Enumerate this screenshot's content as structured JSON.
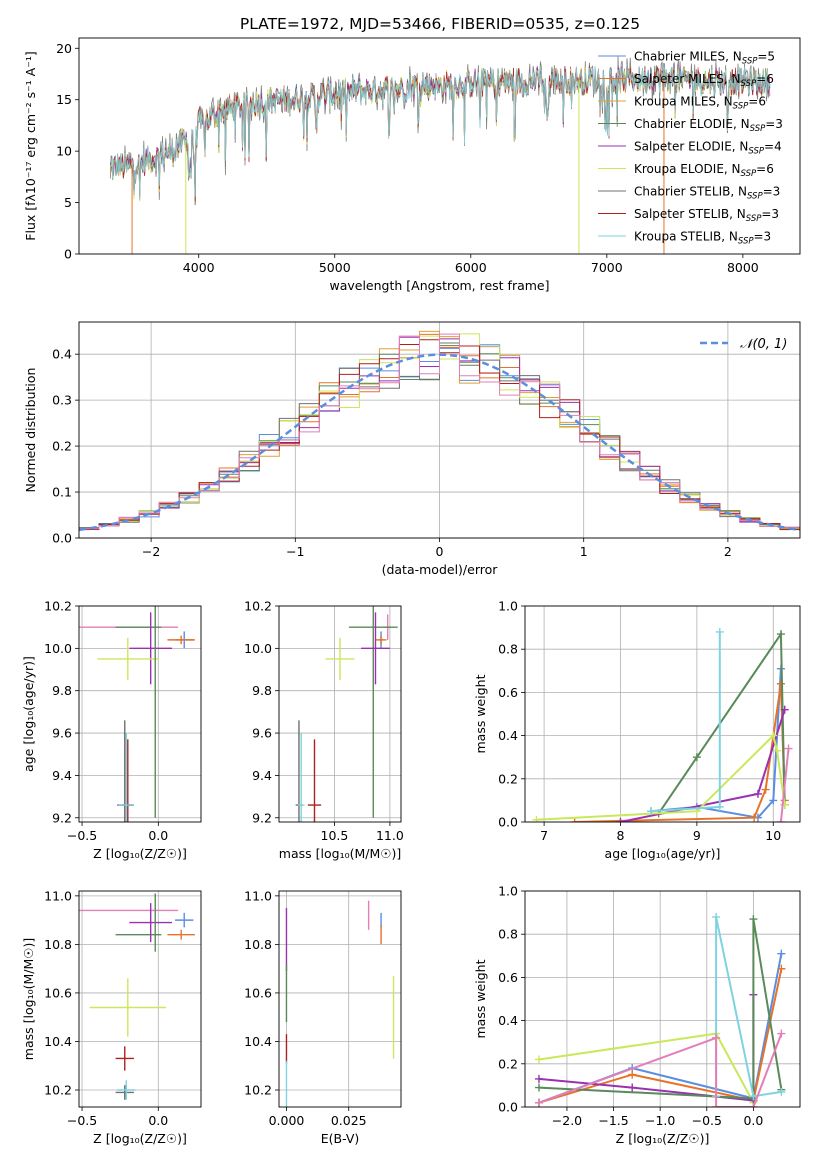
{
  "figure": {
    "title": "PLATE=1972, MJD=53466, FIBERID=0535, z=0.125"
  },
  "colors": {
    "Chabrier MILES": "#5b8ee0",
    "Salpeter MILES": "#e5732a",
    "Kroupa MILES": "#e0a030",
    "Chabrier ELODIE": "#5a8a5a",
    "Salpeter ELODIE": "#9b30b0",
    "Kroupa ELODIE": "#c9e85a",
    "Chabrier STELIB": "#707070",
    "Salpeter STELIB": "#b02020",
    "Kroupa STELIB": "#7fd3e0",
    "pink": "#e37fb8",
    "gauss": "#5b8ee0"
  },
  "chart_data": [
    {
      "id": "spectrum",
      "type": "line",
      "xlabel": "wavelength [Angstrom, rest frame]",
      "ylabel": "Flux [fλ10⁻¹⁷ erg cm⁻² s⁻¹ A⁻¹]",
      "xlim": [
        3120,
        8420
      ],
      "ylim": [
        0,
        21
      ],
      "xticks": [
        4000,
        5000,
        6000,
        7000,
        8000
      ],
      "yticks": [
        0,
        5,
        10,
        15,
        20
      ],
      "legend_position": "top-right",
      "series": [
        {
          "name": "Chabrier MILES, N_SSP=5",
          "key": "Chabrier MILES"
        },
        {
          "name": "Salpeter MILES, N_SSP=6",
          "key": "Salpeter MILES"
        },
        {
          "name": "Kroupa MILES, N_SSP=6",
          "key": "Kroupa MILES"
        },
        {
          "name": "Chabrier ELODIE, N_SSP=3",
          "key": "Chabrier ELODIE"
        },
        {
          "name": "Salpeter ELODIE, N_SSP=4",
          "key": "Salpeter ELODIE"
        },
        {
          "name": "Kroupa ELODIE, N_SSP=6",
          "key": "Kroupa ELODIE"
        },
        {
          "name": "Chabrier STELIB, N_SSP=3",
          "key": "Chabrier STELIB"
        },
        {
          "name": "Salpeter STELIB, N_SSP=3",
          "key": "Salpeter STELIB"
        },
        {
          "name": "Kroupa STELIB, N_SSP=3",
          "key": "Kroupa STELIB"
        }
      ],
      "envelope": {
        "x": [
          3350,
          3400,
          3500,
          3600,
          3700,
          3800,
          3900,
          4000,
          4200,
          4400,
          4600,
          4800,
          5000,
          5200,
          5500,
          5800,
          6000,
          6200,
          6500,
          6800,
          7000,
          7200,
          7400,
          7600,
          7800,
          8000,
          8200
        ],
        "y": [
          8.2,
          8.6,
          8.4,
          9.0,
          9.5,
          10.0,
          11.0,
          12.8,
          14.0,
          14.6,
          15.0,
          15.3,
          15.6,
          15.8,
          16.2,
          16.4,
          16.6,
          16.7,
          16.8,
          16.9,
          17.0,
          17.0,
          17.1,
          16.9,
          16.8,
          16.7,
          16.6
        ]
      }
    },
    {
      "id": "residuals",
      "type": "line",
      "xlabel": "(data-model)/error",
      "ylabel": "Normed distribution",
      "xlim": [
        -2.5,
        2.5
      ],
      "ylim": [
        0,
        0.47
      ],
      "xticks": [
        -2,
        -1,
        0,
        1,
        2
      ],
      "yticks": [
        0.0,
        0.1,
        0.2,
        0.3,
        0.4
      ],
      "gauss_label": "𝒩(0, 1)",
      "legend_position": "top-right",
      "hist_keys": [
        "Chabrier MILES",
        "Salpeter MILES",
        "Kroupa MILES",
        "Chabrier ELODIE",
        "Salpeter ELODIE",
        "Kroupa ELODIE",
        "Chabrier STELIB",
        "Salpeter STELIB",
        "pink"
      ]
    },
    {
      "id": "age_vs_Z",
      "type": "scatter",
      "xlabel": "Z [log₁₀(Z/Z☉)]",
      "ylabel": "age  [log₁₀(age/yr)]",
      "xlim": [
        -0.52,
        0.28
      ],
      "ylim": [
        9.18,
        10.2
      ],
      "xticks": [
        -0.5,
        0.0
      ],
      "yticks": [
        9.2,
        9.4,
        9.6,
        9.8,
        10.0,
        10.2
      ],
      "points": [
        {
          "key": "pink",
          "x": -0.2,
          "y": 10.1,
          "xerr": 0.33,
          "yerr": 0.0
        },
        {
          "key": "Chabrier ELODIE",
          "x": -0.13,
          "y": 10.1,
          "xerr": 0.15,
          "yerr": 0.0
        },
        {
          "key": "Chabrier MILES",
          "x": 0.17,
          "y": 10.04,
          "xerr": 0.06,
          "yerr": 0.04
        },
        {
          "key": "Salpeter MILES",
          "x": 0.15,
          "y": 10.04,
          "xerr": 0.09,
          "yerr": 0.02
        },
        {
          "key": "Salpeter ELODIE",
          "x": -0.05,
          "y": 10.0,
          "xerr": 0.14,
          "yerr": 0.17
        },
        {
          "key": "Kroupa ELODIE",
          "x": -0.2,
          "y": 9.95,
          "xerr": 0.2,
          "yerr": 0.1
        },
        {
          "key": "Chabrier ELODIE",
          "x": -0.02,
          "y": 10.1,
          "xerr": 0.0,
          "yerr": 0.9
        },
        {
          "key": "Chabrier STELIB",
          "x": -0.22,
          "y": 9.26,
          "xerr": 0.05,
          "yerr": 0.4
        },
        {
          "key": "Salpeter STELIB",
          "x": -0.2,
          "y": 9.26,
          "xerr": 0.04,
          "yerr": 0.31
        },
        {
          "key": "Kroupa STELIB",
          "x": -0.21,
          "y": 9.26,
          "xerr": 0.05,
          "yerr": 0.34
        }
      ]
    },
    {
      "id": "age_vs_mass",
      "type": "scatter",
      "xlabel": "mass [log₁₀(M/M☉)]",
      "ylabel": "",
      "xlim": [
        10.0,
        11.1
      ],
      "ylim": [
        9.18,
        10.2
      ],
      "xticks": [
        10.5,
        11.0
      ],
      "yticks": [
        9.2,
        9.4,
        9.6,
        9.8,
        10.0,
        10.2
      ],
      "points": [
        {
          "key": "pink",
          "x": 10.98,
          "y": 10.1,
          "xerr": 0.03,
          "yerr": 0.06
        },
        {
          "key": "Chabrier ELODIE",
          "x": 10.85,
          "y": 10.1,
          "xerr": 0.22,
          "yerr": 0.9
        },
        {
          "key": "Chabrier MILES",
          "x": 10.92,
          "y": 10.04,
          "xerr": 0.02,
          "yerr": 0.04
        },
        {
          "key": "Salpeter MILES",
          "x": 10.92,
          "y": 10.04,
          "xerr": 0.05,
          "yerr": 0.02
        },
        {
          "key": "Salpeter ELODIE",
          "x": 10.87,
          "y": 10.0,
          "xerr": 0.13,
          "yerr": 0.17
        },
        {
          "key": "Kroupa ELODIE",
          "x": 10.55,
          "y": 9.95,
          "xerr": 0.13,
          "yerr": 0.1
        },
        {
          "key": "Chabrier STELIB",
          "x": 10.18,
          "y": 9.26,
          "xerr": 0.03,
          "yerr": 0.4
        },
        {
          "key": "Salpeter STELIB",
          "x": 10.32,
          "y": 9.26,
          "xerr": 0.06,
          "yerr": 0.31
        },
        {
          "key": "Kroupa STELIB",
          "x": 10.2,
          "y": 9.26,
          "xerr": 0.03,
          "yerr": 0.34
        }
      ]
    },
    {
      "id": "weight_vs_age",
      "type": "line",
      "xlabel": "age  [log₁₀(age/yr)]",
      "ylabel": "mass weight",
      "xlim": [
        6.75,
        10.35
      ],
      "ylim": [
        0,
        1.0
      ],
      "xticks": [
        7,
        8,
        9,
        10
      ],
      "yticks": [
        0.0,
        0.2,
        0.4,
        0.6,
        0.8,
        1.0
      ],
      "series": [
        {
          "key": "Chabrier MILES",
          "x": [
            8.4,
            9.0,
            9.8,
            10.0,
            10.1,
            10.15
          ],
          "y": [
            0.05,
            0.07,
            0.02,
            0.1,
            0.71,
            0.08
          ]
        },
        {
          "key": "Salpeter MILES",
          "x": [
            7.4,
            9.75,
            9.9,
            10.1,
            10.15
          ],
          "y": [
            0.0,
            0.02,
            0.15,
            0.64,
            0.1
          ]
        },
        {
          "key": "Chabrier ELODIE",
          "x": [
            8.5,
            9.0,
            10.1,
            10.15
          ],
          "y": [
            0.04,
            0.3,
            0.87,
            0.08
          ]
        },
        {
          "key": "Salpeter ELODIE",
          "x": [
            8.0,
            9.8,
            10.15
          ],
          "y": [
            0.0,
            0.13,
            0.52
          ]
        },
        {
          "key": "Kroupa ELODIE",
          "x": [
            6.9,
            9.0,
            10.0,
            10.05,
            10.15
          ],
          "y": [
            0.01,
            0.05,
            0.4,
            0.33,
            0.08
          ]
        },
        {
          "key": "Kroupa STELIB",
          "x": [
            8.4,
            9.3,
            9.3
          ],
          "y": [
            0.05,
            0.07,
            0.88
          ]
        },
        {
          "key": "pink",
          "x": [
            10.1,
            10.2
          ],
          "y": [
            0.0,
            0.34
          ]
        }
      ]
    },
    {
      "id": "mass_vs_Z",
      "type": "scatter",
      "xlabel": "Z [log₁₀(Z/Z☉)]",
      "ylabel": "mass [log₁₀(M/M☉)]",
      "xlim": [
        -0.52,
        0.28
      ],
      "ylim": [
        10.13,
        11.02
      ],
      "xticks": [
        -0.5,
        0.0
      ],
      "yticks": [
        10.2,
        10.4,
        10.6,
        10.8,
        11.0
      ],
      "points": [
        {
          "key": "pink",
          "x": -0.2,
          "y": 10.94,
          "xerr": 0.33,
          "yerr": 0.0
        },
        {
          "key": "Chabrier MILES",
          "x": 0.17,
          "y": 10.9,
          "xerr": 0.06,
          "yerr": 0.03
        },
        {
          "key": "Salpeter MILES",
          "x": 0.15,
          "y": 10.84,
          "xerr": 0.09,
          "yerr": 0.02
        },
        {
          "key": "Chabrier ELODIE",
          "x": -0.13,
          "y": 10.84,
          "xerr": 0.15,
          "yerr": 0.0
        },
        {
          "key": "Salpeter ELODIE",
          "x": -0.05,
          "y": 10.89,
          "xerr": 0.14,
          "yerr": 0.08
        },
        {
          "key": "Chabrier ELODIE",
          "x": -0.02,
          "y": 10.89,
          "xerr": 0.0,
          "yerr": 0.12
        },
        {
          "key": "Kroupa ELODIE",
          "x": -0.2,
          "y": 10.54,
          "xerr": 0.25,
          "yerr": 0.12
        },
        {
          "key": "Salpeter STELIB",
          "x": -0.22,
          "y": 10.33,
          "xerr": 0.06,
          "yerr": 0.05
        },
        {
          "key": "Chabrier STELIB",
          "x": -0.22,
          "y": 10.19,
          "xerr": 0.06,
          "yerr": 0.03
        },
        {
          "key": "Kroupa STELIB",
          "x": -0.21,
          "y": 10.2,
          "xerr": 0.06,
          "yerr": 0.04
        }
      ]
    },
    {
      "id": "mass_vs_EBV",
      "type": "scatter",
      "xlabel": "E(B-V)",
      "ylabel": "",
      "xlim": [
        -0.003,
        0.046
      ],
      "ylim": [
        10.13,
        11.02
      ],
      "xticks": [
        0.0,
        0.025
      ],
      "xticklabels": [
        "0.000",
        "0.025"
      ],
      "yticks": [
        10.2,
        10.4,
        10.6,
        10.8,
        11.0
      ],
      "points": [
        {
          "key": "pink",
          "x": 0.033,
          "y": 10.92,
          "xerr": 0.0,
          "yerr": 0.06
        },
        {
          "key": "Chabrier MILES",
          "x": 0.038,
          "y": 10.9,
          "xerr": 0.0,
          "yerr": 0.03
        },
        {
          "key": "Salpeter MILES",
          "x": 0.038,
          "y": 10.84,
          "xerr": 0.0,
          "yerr": 0.04
        },
        {
          "key": "Salpeter ELODIE",
          "x": 0.0,
          "y": 10.82,
          "xerr": 0.0,
          "yerr": 0.13
        },
        {
          "key": "Chabrier ELODIE",
          "x": 0.0,
          "y": 10.6,
          "xerr": 0.0,
          "yerr": 0.12
        },
        {
          "key": "Kroupa ELODIE",
          "x": 0.043,
          "y": 10.5,
          "xerr": 0.0,
          "yerr": 0.17
        },
        {
          "key": "Salpeter STELIB",
          "x": 0.0,
          "y": 10.37,
          "xerr": 0.0,
          "yerr": 0.06
        },
        {
          "key": "Kroupa STELIB",
          "x": 0.0,
          "y": 10.2,
          "xerr": 0.0,
          "yerr": 0.12
        }
      ]
    },
    {
      "id": "weight_vs_Z",
      "type": "line",
      "xlabel": "Z [log₁₀(Z/Z☉)]",
      "ylabel": "mass weight",
      "xlim": [
        -2.45,
        0.5
      ],
      "ylim": [
        0,
        1.0
      ],
      "xticks": [
        -2.0,
        -1.5,
        -1.0,
        -0.5,
        0.0
      ],
      "yticks": [
        0.0,
        0.2,
        0.4,
        0.6,
        0.8,
        1.0
      ],
      "series": [
        {
          "key": "Chabrier MILES",
          "x": [
            -2.3,
            -1.3,
            0.0,
            0.3
          ],
          "y": [
            0.02,
            0.18,
            0.04,
            0.71
          ]
        },
        {
          "key": "Salpeter MILES",
          "x": [
            -2.3,
            -1.3,
            0.0,
            0.3
          ],
          "y": [
            0.02,
            0.15,
            0.03,
            0.64
          ]
        },
        {
          "key": "Kroupa ELODIE",
          "x": [
            -2.3,
            -0.4,
            0.0
          ],
          "y": [
            0.22,
            0.34,
            0.02
          ]
        },
        {
          "key": "Salpeter ELODIE",
          "x": [
            -2.3,
            -1.3,
            0.0,
            0.0
          ],
          "y": [
            0.13,
            0.09,
            0.03,
            0.52
          ]
        },
        {
          "key": "Chabrier ELODIE",
          "x": [
            -2.3,
            0.0,
            0.0,
            0.3
          ],
          "y": [
            0.09,
            0.04,
            0.87,
            0.08
          ]
        },
        {
          "key": "Kroupa STELIB",
          "x": [
            -0.4,
            -0.4,
            0.0,
            0.3
          ],
          "y": [
            0.05,
            0.88,
            0.05,
            0.07
          ]
        },
        {
          "key": "pink",
          "x": [
            -2.3,
            -0.4,
            -0.4,
            0.0,
            0.3
          ],
          "y": [
            0.02,
            0.32,
            0.0,
            0.0,
            0.34
          ]
        }
      ]
    }
  ]
}
